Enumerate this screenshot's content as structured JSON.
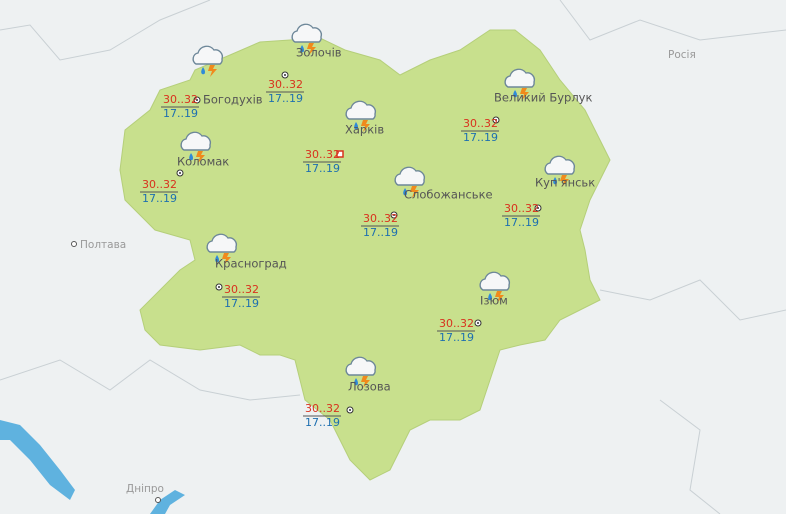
{
  "cities": [
    {
      "name": "Богодухів",
      "max": "30..32",
      "min": "17..19"
    },
    {
      "name": "Золочів",
      "max": "30..32",
      "min": "17..19"
    },
    {
      "name": "Харків",
      "max": "30..32",
      "min": "17..19"
    },
    {
      "name": "Великий Бурлук",
      "max": "30..32",
      "min": "17..19"
    },
    {
      "name": "Коломак",
      "max": "30..32",
      "min": "17..19"
    },
    {
      "name": "Слобожанське",
      "max": "30..32",
      "min": "17..19"
    },
    {
      "name": "Куп'янськ",
      "max": "30..32",
      "min": "17..19"
    },
    {
      "name": "Красноград",
      "max": "30..32",
      "min": "17..19"
    },
    {
      "name": "Ізюм",
      "max": "30..32",
      "min": "17..19"
    },
    {
      "name": "Лозова",
      "max": "30..32",
      "min": "17..19"
    }
  ],
  "neighbors": {
    "country": "Росія",
    "poltava": "Полтава",
    "dnipro": "Дніпро"
  }
}
